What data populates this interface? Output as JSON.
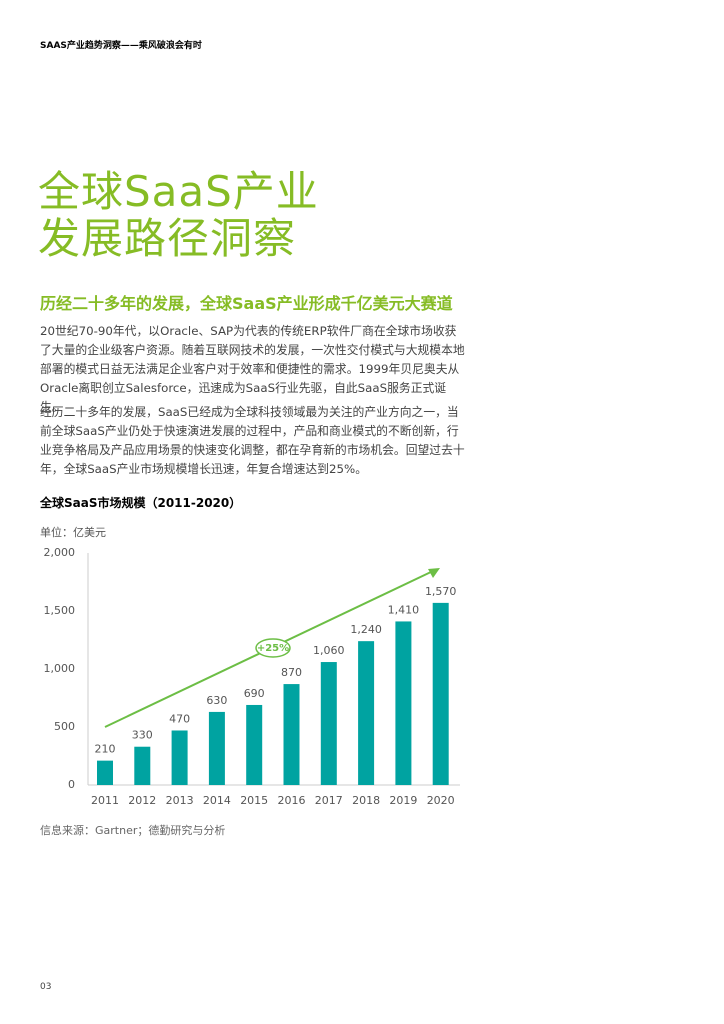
{
  "header": {
    "title": "SAAS产业趋势洞察——乘风破浪会有时"
  },
  "title": {
    "line1": "全球SaaS产业",
    "line2": "发展路径洞察"
  },
  "subtitle": "历经二十多年的发展，全球SaaS产业形成千亿美元大赛道",
  "paragraphs": [
    "20世纪70-90年代，以Oracle、SAP为代表的传统ERP软件厂商在全球市场收获了大量的企业级客户资源。随着互联网技术的发展，一次性交付模式与大规模本地部署的模式日益无法满足企业客户对于效率和便捷性的需求。1999年贝尼奥夫从Oracle离职创立Salesforce，迅速成为SaaS行业先驱，自此SaaS服务正式诞生。",
    "经历二十多年的发展，SaaS已经成为全球科技领域最为关注的产业方向之一，当前全球SaaS产业仍处于快速演进发展的过程中，产品和商业模式的不断创新，行业竞争格局及产品应用场景的快速变化调整，都在孕育新的市场机会。回望过去十年，全球SaaS产业市场规模增长迅速，年复合增速达到25%。"
  ],
  "chart_data": {
    "type": "bar",
    "title": "全球SaaS市场规模（2011-2020）",
    "y_label": "单位：亿美元",
    "categories": [
      "2011",
      "2012",
      "2013",
      "2014",
      "2015",
      "2016",
      "2017",
      "2018",
      "2019",
      "2020"
    ],
    "values": [
      210,
      330,
      470,
      630,
      690,
      870,
      1060,
      1240,
      1410,
      1570
    ],
    "value_labels": [
      "210",
      "330",
      "470",
      "630",
      "690",
      "870",
      "1,060",
      "1,240",
      "1,410",
      "1,570"
    ],
    "color": "#00a3a1",
    "ylim": [
      0,
      2000
    ],
    "yticks": [
      0,
      500,
      {
        "value": 1000,
        "label": "1,000"
      },
      {
        "value": 1500,
        "label": "1,500"
      },
      {
        "value": 2000,
        "label": "2,000"
      }
    ],
    "annotation": "+25%"
  },
  "source": "信息来源：Gartner；德勤研究与分析",
  "page_number": "03"
}
